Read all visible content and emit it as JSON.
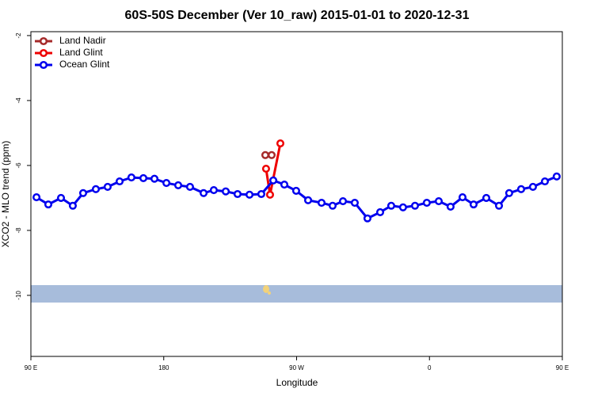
{
  "chart_data": {
    "type": "line",
    "title": "60S-50S December (Ver 10_raw)   2015-01-01 to 2020-12-31",
    "x_label": "Longitude",
    "y_label": "XCO2 - MLO trend (ppm)",
    "xlim": [
      90,
      450
    ],
    "ylim": [
      -11.88,
      -1.88
    ],
    "xticks": [
      {
        "value": 90,
        "label": "90 E"
      },
      {
        "value": 180,
        "label": "180"
      },
      {
        "value": 270,
        "label": "90 W"
      },
      {
        "value": 360,
        "label": "0"
      },
      {
        "value": 450,
        "label": "90 E"
      }
    ],
    "yticks": [
      -10,
      -8,
      -6,
      -4,
      -2
    ],
    "legend": "top-left",
    "series": [
      {
        "name": "Land Nadir",
        "color": "#a52a2a",
        "x": [
          248.8,
          253.1
        ],
        "values": [
          -5.68,
          -5.68
        ]
      },
      {
        "name": "Land Glint",
        "color": "#ee0000",
        "x": [
          249.3,
          252.0,
          259.0
        ],
        "values": [
          -6.1,
          -6.9,
          -5.32
        ]
      },
      {
        "name": "Ocean Glint",
        "color": "#0000ee",
        "x": [
          93.8,
          101.8,
          110.4,
          118.4,
          125.4,
          134.0,
          142.0,
          150.1,
          158.1,
          166.2,
          173.7,
          181.8,
          189.8,
          197.8,
          207.0,
          213.9,
          222.0,
          230.0,
          238.1,
          246.1,
          254.2,
          261.7,
          269.7,
          277.8,
          286.9,
          294.4,
          301.4,
          309.4,
          318.0,
          326.6,
          334.1,
          342.1,
          350.2,
          358.2,
          366.3,
          374.3,
          382.4,
          389.9,
          398.5,
          407.1,
          414.0,
          422.1,
          430.1,
          438.2,
          446.2
        ],
        "values": [
          -6.98,
          -7.2,
          -7.0,
          -7.24,
          -6.85,
          -6.73,
          -6.66,
          -6.49,
          -6.37,
          -6.39,
          -6.41,
          -6.54,
          -6.61,
          -6.66,
          -6.85,
          -6.76,
          -6.8,
          -6.88,
          -6.9,
          -6.88,
          -6.46,
          -6.59,
          -6.78,
          -7.07,
          -7.15,
          -7.24,
          -7.1,
          -7.15,
          -7.63,
          -7.44,
          -7.24,
          -7.29,
          -7.24,
          -7.15,
          -7.1,
          -7.27,
          -6.98,
          -7.2,
          -7.0,
          -7.24,
          -6.85,
          -6.73,
          -6.66,
          -6.49,
          -6.34
        ]
      }
    ]
  }
}
